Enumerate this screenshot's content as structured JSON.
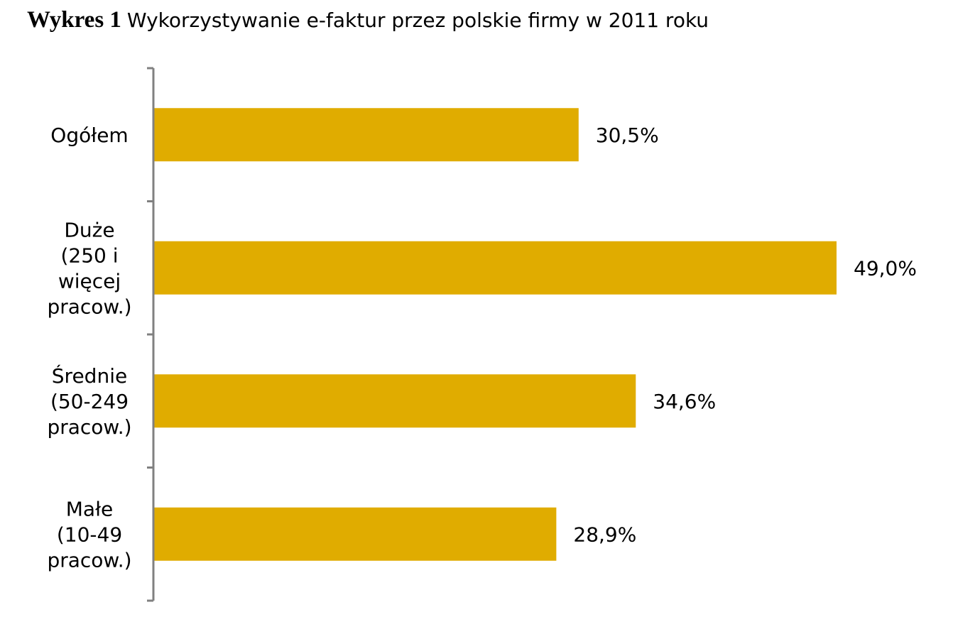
{
  "title": {
    "label": "Wykres 1",
    "text": "Wykorzystywanie e-faktur przez polskie firmy w 2011 roku"
  },
  "chart_data": {
    "type": "bar",
    "orientation": "horizontal",
    "categories": [
      [
        "Ogółem"
      ],
      [
        "Duże",
        "(250 i",
        "więcej",
        "pracow.)"
      ],
      [
        "Średnie",
        "(50-249",
        "pracow.)"
      ],
      [
        "Małe",
        "(10-49",
        "pracow.)"
      ]
    ],
    "values": [
      30.5,
      49.0,
      34.6,
      28.9
    ],
    "value_labels": [
      "30,5%",
      "49,0%",
      "34,6%",
      "28,9%"
    ],
    "bar_color": "#E0AC00",
    "axis_color": "#808080",
    "grid": false,
    "legend": "none"
  }
}
